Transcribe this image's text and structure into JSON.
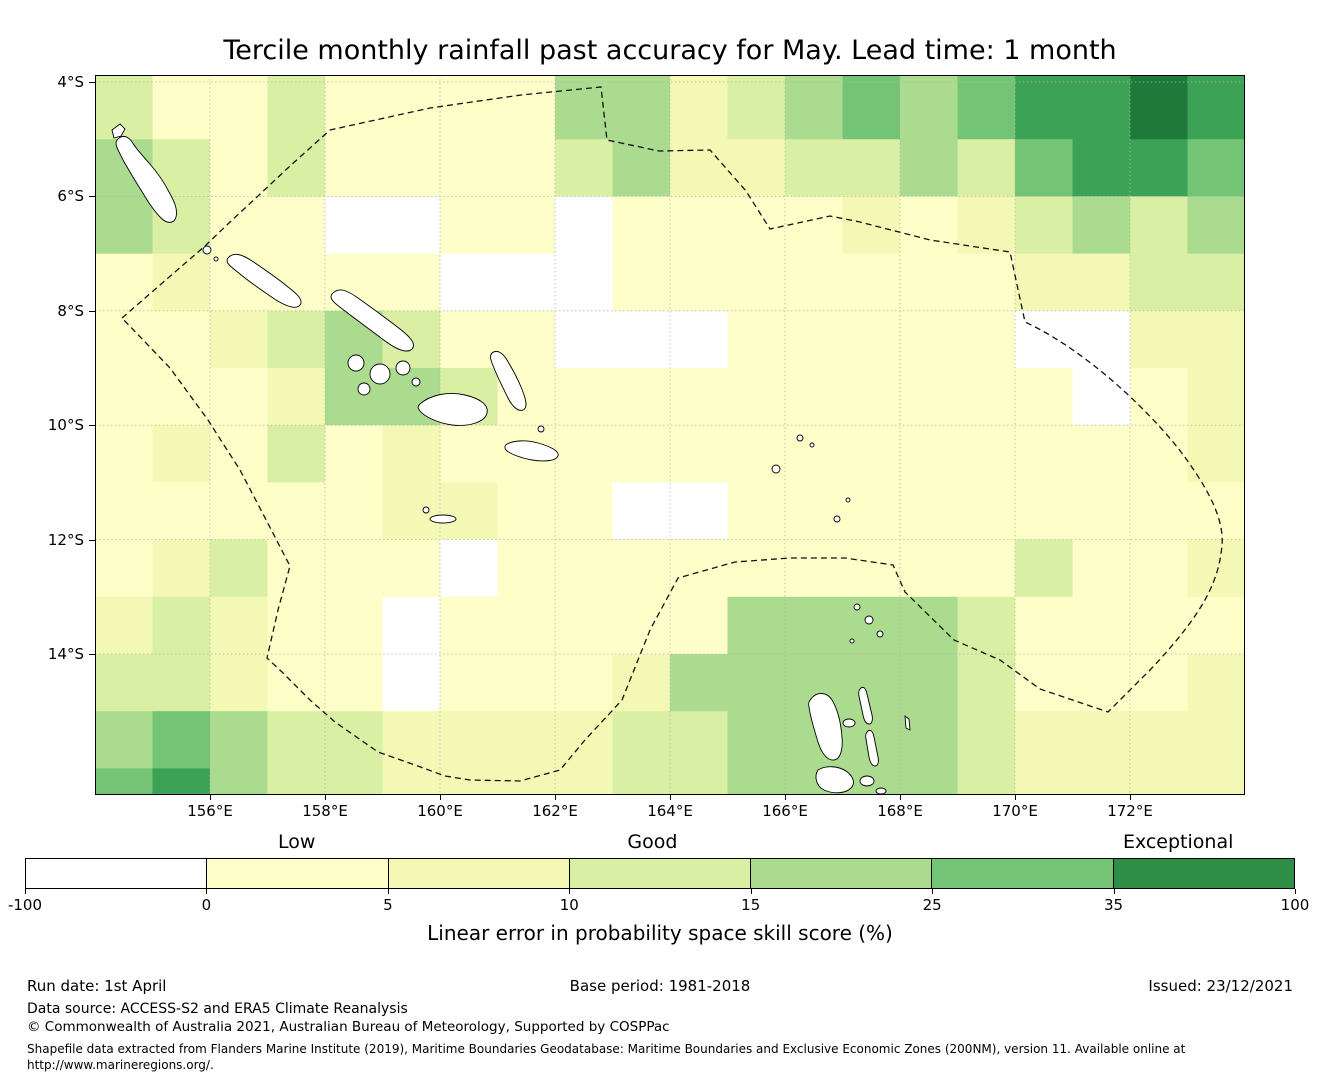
{
  "title": "Tercile monthly rainfall past accuracy for May. Lead time: 1 month",
  "map": {
    "lat_ticks": [
      "4°S",
      "6°S",
      "8°S",
      "10°S",
      "12°S",
      "14°S"
    ],
    "lon_ticks": [
      "156°E",
      "158°E",
      "160°E",
      "162°E",
      "164°E",
      "166°E",
      "168°E",
      "170°E",
      "172°E"
    ]
  },
  "colorbar": {
    "category_labels": [
      "Low",
      "Good",
      "Exceptional"
    ],
    "tick_labels": [
      "-100",
      "0",
      "5",
      "10",
      "15",
      "25",
      "35",
      "100"
    ],
    "segment_colors": [
      "#ffffff",
      "#fefec9",
      "#f3f9b5",
      "#d8efa4",
      "#abdb8e",
      "#74c476",
      "#2f8e46"
    ],
    "axis_label": "Linear error in probability space skill score (%)"
  },
  "footer": {
    "run_date": "Run date: 1st April",
    "base_period": "Base period: 1981-2018",
    "issued": "Issued: 23/12/2021",
    "data_source": "Data source: ACCESS-S2 and ERA5 Climate Reanalysis",
    "copyright": "© Commonwealth of Australia 2021, Australian Bureau of Meteorology, Supported by COSPPac",
    "shapefile_note": "Shapefile data extracted from Flanders Marine Institute (2019), Maritime Boundaries Geodatabase: Maritime Boundaries and Exclusive Economic Zones (200NM), version 11. Available online at\nhttp://www.marineregions.org/."
  },
  "chart_data": {
    "type": "heatmap",
    "title": "Tercile monthly rainfall past accuracy for May. Lead time: 1 month",
    "xlabel_ticks": [
      156,
      158,
      160,
      162,
      164,
      166,
      168,
      170,
      172
    ],
    "ylabel_ticks": [
      -4,
      -6,
      -8,
      -10,
      -12,
      -14
    ],
    "lon_range": [
      154,
      174
    ],
    "lat_range": [
      -16.5,
      -4
    ],
    "value_bins": [
      -100,
      0,
      5,
      10,
      15,
      25,
      35,
      100
    ],
    "colorbar_label": "Linear error in probability space skill score (%)",
    "category_labels": [
      "Low",
      "Good",
      "Exceptional"
    ],
    "cell_palette": [
      "#ffffff",
      "#fefec9",
      "#f3f9b5",
      "#d8efa4",
      "#abdb8e",
      "#74c476",
      "#3ba256",
      "#1e7a38"
    ],
    "grid_note": "LEPS skill-score bin index per 1°x1° cell (0=<0%, 1=0-5, 2=5-10, 3=10-15, 4=15-25, 5=25-35, 6/7=35-100). Rows north to south from 4°S, cols west to east from 154°E.",
    "grid": [
      "31131111442345456676",
      "43131111342233435665",
      "43110011011112123434",
      "12111100011111112233",
      "11234311000111110022",
      "11124431111111111012",
      "12131211111111111112",
      "11111221100111111111",
      "12311101111111113112",
      "23211011111444431111",
      "33211011124444431112",
      "45433222233444432222",
      "56433222233444432222"
    ]
  }
}
